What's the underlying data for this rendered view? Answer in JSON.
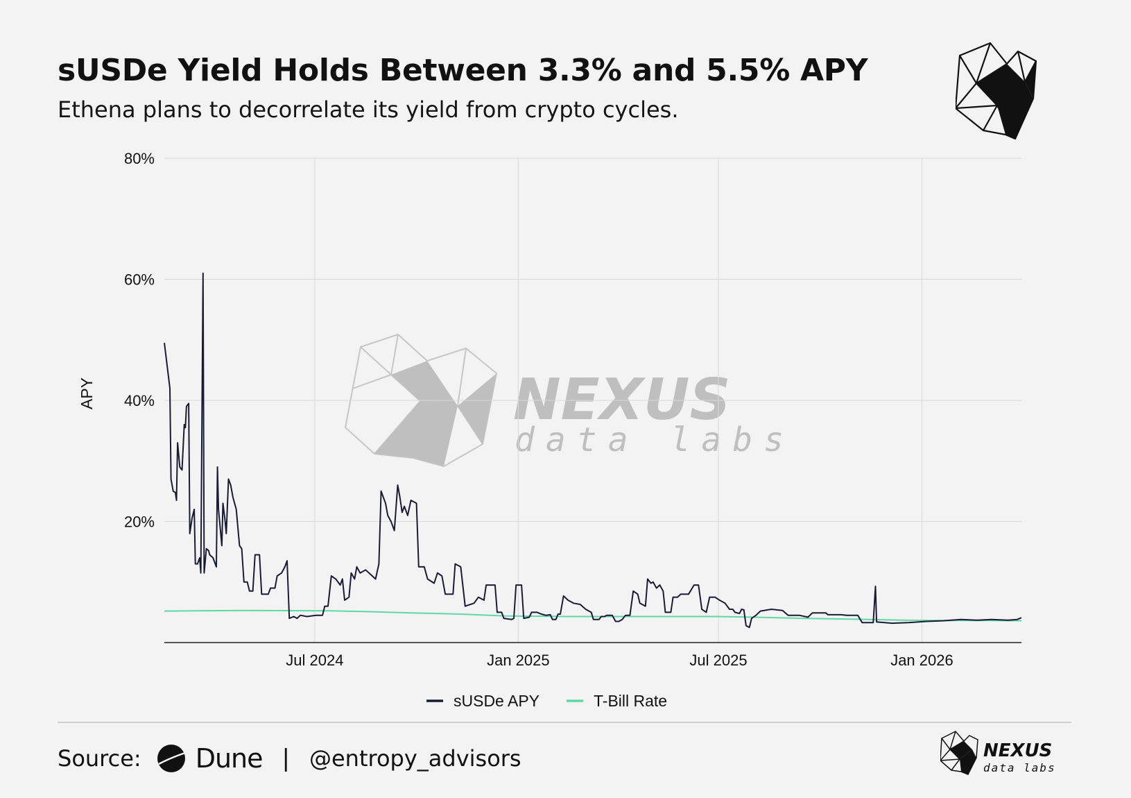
{
  "title": "sUSDe Yield Holds Between 3.3% and 5.5% APY",
  "subtitle": "Ethena plans to decorrelate its yield from crypto cycles.",
  "footer": {
    "source_label": "Source:",
    "dune_label": "Dune",
    "separator": "|",
    "handle": "@entropy_advisors"
  },
  "watermark": {
    "brand": "NEXUS",
    "tagline": "data labs"
  },
  "logo_bottom": {
    "brand": "NEXUS",
    "tagline": "data labs"
  },
  "colors": {
    "susde": "#1a1a35",
    "tbill": "#5ed9a6",
    "grid": "#d9d9d9",
    "background": "#f3f3f3"
  },
  "chart_data": {
    "type": "line",
    "title": "sUSDe Yield Holds Between 3.3% and 5.5% APY",
    "xlabel": "",
    "ylabel": "APY",
    "ylim": [
      0,
      80
    ],
    "xlim": [
      "2024-02-16",
      "2026-04-01"
    ],
    "x_ticks": [
      {
        "date": "2024-07-01",
        "label": "Jul 2024"
      },
      {
        "date": "2025-01-01",
        "label": "Jan 2025"
      },
      {
        "date": "2025-07-01",
        "label": "Jul 2025"
      },
      {
        "date": "2026-01-01",
        "label": "Jan 2026"
      }
    ],
    "y_ticks": [
      {
        "value": 20,
        "label": "20%"
      },
      {
        "value": 40,
        "label": "40%"
      },
      {
        "value": 60,
        "label": "60%"
      },
      {
        "value": 80,
        "label": "80%"
      }
    ],
    "grid": true,
    "legend_position": "bottom-center",
    "series": [
      {
        "name": "sUSDe APY",
        "color": "#1a1a35",
        "points": [
          [
            "2024-02-16",
            49.5
          ],
          [
            "2024-02-19",
            45
          ],
          [
            "2024-02-21",
            42
          ],
          [
            "2024-02-22",
            27
          ],
          [
            "2024-02-24",
            25
          ],
          [
            "2024-02-26",
            24.8
          ],
          [
            "2024-02-27",
            23.5
          ],
          [
            "2024-02-28",
            33
          ],
          [
            "2024-03-01",
            29
          ],
          [
            "2024-03-03",
            28.5
          ],
          [
            "2024-03-05",
            36
          ],
          [
            "2024-03-06",
            35.5
          ],
          [
            "2024-03-07",
            39
          ],
          [
            "2024-03-09",
            39.5
          ],
          [
            "2024-03-10",
            18
          ],
          [
            "2024-03-12",
            20.5
          ],
          [
            "2024-03-14",
            22
          ],
          [
            "2024-03-15",
            13
          ],
          [
            "2024-03-17",
            13
          ],
          [
            "2024-03-19",
            14
          ],
          [
            "2024-03-20",
            11.5
          ],
          [
            "2024-03-22",
            61
          ],
          [
            "2024-03-23",
            11.5
          ],
          [
            "2024-03-25",
            15.5
          ],
          [
            "2024-03-27",
            15.2
          ],
          [
            "2024-03-28",
            14.5
          ],
          [
            "2024-03-31",
            14
          ],
          [
            "2024-04-03",
            12.5
          ],
          [
            "2024-04-04",
            29
          ],
          [
            "2024-04-05",
            22
          ],
          [
            "2024-04-08",
            16
          ],
          [
            "2024-04-09",
            23
          ],
          [
            "2024-04-11",
            20
          ],
          [
            "2024-04-12",
            18
          ],
          [
            "2024-04-14",
            27
          ],
          [
            "2024-04-16",
            26
          ],
          [
            "2024-04-18",
            24
          ],
          [
            "2024-04-21",
            22
          ],
          [
            "2024-04-24",
            16
          ],
          [
            "2024-04-26",
            15.5
          ],
          [
            "2024-04-28",
            10
          ],
          [
            "2024-05-01",
            10
          ],
          [
            "2024-05-03",
            8.5
          ],
          [
            "2024-05-06",
            8.5
          ],
          [
            "2024-05-08",
            14.5
          ],
          [
            "2024-05-12",
            14.5
          ],
          [
            "2024-05-14",
            8
          ],
          [
            "2024-05-20",
            8
          ],
          [
            "2024-05-22",
            9
          ],
          [
            "2024-05-26",
            9
          ],
          [
            "2024-05-28",
            11
          ],
          [
            "2024-06-01",
            11.5
          ],
          [
            "2024-06-04",
            12.5
          ],
          [
            "2024-06-06",
            13.5
          ],
          [
            "2024-06-08",
            4
          ],
          [
            "2024-06-12",
            4.3
          ],
          [
            "2024-06-15",
            4
          ],
          [
            "2024-06-18",
            4.5
          ],
          [
            "2024-06-24",
            4.3
          ],
          [
            "2024-07-02",
            4.5
          ],
          [
            "2024-07-08",
            4.5
          ],
          [
            "2024-07-10",
            6
          ],
          [
            "2024-07-13",
            6
          ],
          [
            "2024-07-16",
            11
          ],
          [
            "2024-07-20",
            10.5
          ],
          [
            "2024-07-24",
            9.5
          ],
          [
            "2024-07-26",
            10.5
          ],
          [
            "2024-07-28",
            7
          ],
          [
            "2024-08-01",
            7.5
          ],
          [
            "2024-08-03",
            11.5
          ],
          [
            "2024-08-06",
            10.5
          ],
          [
            "2024-08-08",
            12.5
          ],
          [
            "2024-08-11",
            11.5
          ],
          [
            "2024-08-16",
            12
          ],
          [
            "2024-08-22",
            11
          ],
          [
            "2024-08-25",
            10.5
          ],
          [
            "2024-08-28",
            13
          ],
          [
            "2024-08-30",
            25
          ],
          [
            "2024-09-03",
            23
          ],
          [
            "2024-09-05",
            21
          ],
          [
            "2024-09-08",
            20
          ],
          [
            "2024-09-11",
            18.5
          ],
          [
            "2024-09-14",
            26
          ],
          [
            "2024-09-16",
            24
          ],
          [
            "2024-09-18",
            21.5
          ],
          [
            "2024-09-20",
            22.5
          ],
          [
            "2024-09-23",
            21
          ],
          [
            "2024-09-26",
            23.5
          ],
          [
            "2024-10-01",
            23
          ],
          [
            "2024-10-03",
            12.5
          ],
          [
            "2024-10-08",
            12.5
          ],
          [
            "2024-10-11",
            10.5
          ],
          [
            "2024-10-17",
            9.8
          ],
          [
            "2024-10-20",
            11.5
          ],
          [
            "2024-10-24",
            11
          ],
          [
            "2024-10-27",
            8
          ],
          [
            "2024-11-03",
            8
          ],
          [
            "2024-11-05",
            13
          ],
          [
            "2024-11-10",
            12.5
          ],
          [
            "2024-11-14",
            6
          ],
          [
            "2024-11-22",
            6.5
          ],
          [
            "2024-11-26",
            7.5
          ],
          [
            "2024-12-01",
            7
          ],
          [
            "2024-12-03",
            9.5
          ],
          [
            "2024-12-11",
            9.5
          ],
          [
            "2024-12-13",
            5
          ],
          [
            "2024-12-17",
            5
          ],
          [
            "2024-12-19",
            4
          ],
          [
            "2024-12-26",
            3.8
          ],
          [
            "2024-12-28",
            4
          ],
          [
            "2024-12-30",
            9.5
          ],
          [
            "2025-01-04",
            9.5
          ],
          [
            "2025-01-06",
            4
          ],
          [
            "2025-01-11",
            4.2
          ],
          [
            "2025-01-13",
            5
          ],
          [
            "2025-01-18",
            5
          ],
          [
            "2025-01-22",
            4.7
          ],
          [
            "2025-01-26",
            4.5
          ],
          [
            "2025-01-30",
            4.6
          ],
          [
            "2025-02-01",
            3.8
          ],
          [
            "2025-02-04",
            3.8
          ],
          [
            "2025-02-06",
            4.7
          ],
          [
            "2025-02-08",
            4.7
          ],
          [
            "2025-02-11",
            7.7
          ],
          [
            "2025-02-15",
            7
          ],
          [
            "2025-02-20",
            6.5
          ],
          [
            "2025-02-26",
            6.3
          ],
          [
            "2025-03-03",
            5.5
          ],
          [
            "2025-03-08",
            5
          ],
          [
            "2025-03-10",
            3.8
          ],
          [
            "2025-03-15",
            3.8
          ],
          [
            "2025-03-17",
            4.3
          ],
          [
            "2025-03-20",
            4.3
          ],
          [
            "2025-03-22",
            4.5
          ],
          [
            "2025-03-27",
            4.5
          ],
          [
            "2025-03-30",
            3.5
          ],
          [
            "2025-04-02",
            3.5
          ],
          [
            "2025-04-05",
            3.8
          ],
          [
            "2025-04-08",
            4.5
          ],
          [
            "2025-04-12",
            4.5
          ],
          [
            "2025-04-15",
            8.5
          ],
          [
            "2025-04-19",
            8
          ],
          [
            "2025-04-21",
            6.5
          ],
          [
            "2025-04-26",
            6
          ],
          [
            "2025-04-28",
            10.5
          ],
          [
            "2025-05-01",
            9.8
          ],
          [
            "2025-05-03",
            10
          ],
          [
            "2025-05-06",
            9
          ],
          [
            "2025-05-09",
            9.5
          ],
          [
            "2025-05-12",
            8.5
          ],
          [
            "2025-05-14",
            5
          ],
          [
            "2025-05-19",
            5
          ],
          [
            "2025-05-21",
            7.5
          ],
          [
            "2025-05-25",
            7.5
          ],
          [
            "2025-05-28",
            8
          ],
          [
            "2025-06-04",
            8
          ],
          [
            "2025-06-09",
            9.5
          ],
          [
            "2025-06-13",
            9.5
          ],
          [
            "2025-06-16",
            5.5
          ],
          [
            "2025-06-20",
            5
          ],
          [
            "2025-06-23",
            7.5
          ],
          [
            "2025-06-28",
            7.5
          ],
          [
            "2025-07-02",
            7
          ],
          [
            "2025-07-07",
            6.5
          ],
          [
            "2025-07-11",
            5.5
          ],
          [
            "2025-07-14",
            5.5
          ],
          [
            "2025-07-16",
            5
          ],
          [
            "2025-07-20",
            4.8
          ],
          [
            "2025-07-22",
            5.5
          ],
          [
            "2025-07-24",
            5.4
          ],
          [
            "2025-07-26",
            2.8
          ],
          [
            "2025-07-29",
            2.5
          ],
          [
            "2025-07-31",
            4
          ],
          [
            "2025-08-04",
            4.5
          ],
          [
            "2025-08-08",
            5.2
          ],
          [
            "2025-08-18",
            5.5
          ],
          [
            "2025-08-28",
            5.3
          ],
          [
            "2025-09-02",
            4.5
          ],
          [
            "2025-09-12",
            4.5
          ],
          [
            "2025-09-20",
            4.2
          ],
          [
            "2025-09-24",
            4.9
          ],
          [
            "2025-10-06",
            4.9
          ],
          [
            "2025-10-08",
            4.6
          ],
          [
            "2025-10-20",
            4.6
          ],
          [
            "2025-10-25",
            4.5
          ],
          [
            "2025-11-04",
            4.5
          ],
          [
            "2025-11-08",
            3.3
          ],
          [
            "2025-11-18",
            3.3
          ],
          [
            "2025-11-20",
            9.3
          ],
          [
            "2025-11-21",
            3.4
          ],
          [
            "2025-12-05",
            3.2
          ],
          [
            "2025-12-20",
            3.3
          ],
          [
            "2026-01-05",
            3.5
          ],
          [
            "2026-01-20",
            3.6
          ],
          [
            "2026-02-05",
            3.8
          ],
          [
            "2026-02-20",
            3.7
          ],
          [
            "2026-03-05",
            3.8
          ],
          [
            "2026-03-20",
            3.7
          ],
          [
            "2026-03-28",
            3.8
          ],
          [
            "2026-04-01",
            4.1
          ]
        ]
      },
      {
        "name": "T-Bill Rate",
        "color": "#5ed9a6",
        "points": [
          [
            "2024-02-16",
            5.2
          ],
          [
            "2024-03-16",
            5.25
          ],
          [
            "2024-05-01",
            5.3
          ],
          [
            "2024-07-15",
            5.25
          ],
          [
            "2024-08-20",
            5.1
          ],
          [
            "2024-09-25",
            4.9
          ],
          [
            "2024-11-10",
            4.7
          ],
          [
            "2024-12-20",
            4.4
          ],
          [
            "2025-02-15",
            4.3
          ],
          [
            "2025-04-15",
            4.3
          ],
          [
            "2025-06-30",
            4.3
          ],
          [
            "2025-08-01",
            4.2
          ],
          [
            "2025-09-15",
            4.0
          ],
          [
            "2025-10-20",
            3.9
          ],
          [
            "2025-12-15",
            3.7
          ],
          [
            "2026-01-20",
            3.65
          ],
          [
            "2026-03-01",
            3.65
          ],
          [
            "2026-04-01",
            3.6
          ]
        ]
      }
    ]
  }
}
